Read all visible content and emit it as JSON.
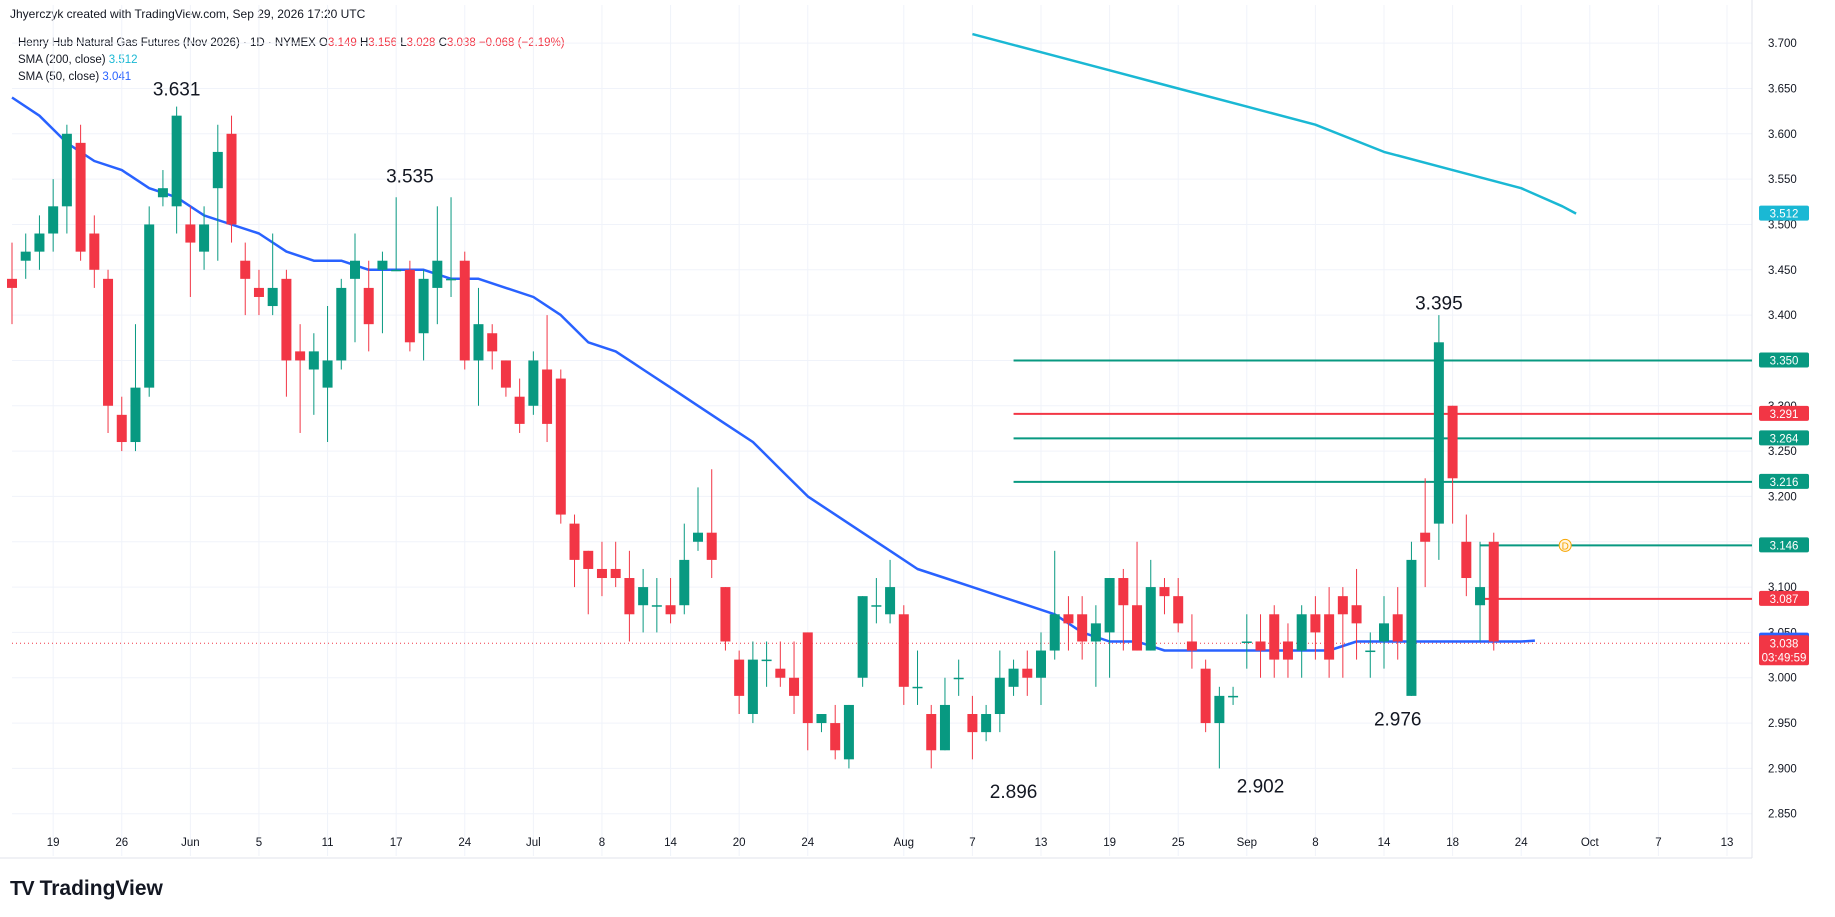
{
  "header": {
    "attribution": "Jhyerczyk created with TradingView.com, Sep 29, 2026 17:20 UTC"
  },
  "legend": {
    "symbol": "Henry Hub Natural Gas Futures (Nov 2026) · 1D · NYMEX",
    "o_label": "O",
    "o": "3.149",
    "h_label": "H",
    "h": "3.156",
    "l_label": "L",
    "l": "3.028",
    "c_label": "C",
    "c": "3.038",
    "change": "−0.068 (−2.19%)",
    "sma200_label": "SMA (200, close)",
    "sma200_value": "3.512",
    "sma50_label": "SMA (50, close)",
    "sma50_value": "3.041"
  },
  "brand": {
    "logo": "TV",
    "name": "TradingView"
  },
  "colors": {
    "up": "#089981",
    "down": "#f23645",
    "sma200": "#1ab8d4",
    "sma50": "#2962ff",
    "level_green": "#089981",
    "level_red": "#f23645"
  },
  "chart_data": {
    "type": "candlestick",
    "interval": "1D",
    "ylim": [
      2.81,
      3.72
    ],
    "y_ticks": [
      "3.700",
      "3.650",
      "3.600",
      "3.550",
      "3.500",
      "3.450",
      "3.400",
      "3.350",
      "3.300",
      "3.250",
      "3.200",
      "3.150",
      "3.100",
      "3.050",
      "3.000",
      "2.950",
      "2.900",
      "2.850"
    ],
    "x_ticks": [
      {
        "i": 3,
        "label": "19"
      },
      {
        "i": 8,
        "label": "26"
      },
      {
        "i": 13,
        "label": "Jun"
      },
      {
        "i": 18,
        "label": "5"
      },
      {
        "i": 23,
        "label": "11"
      },
      {
        "i": 28,
        "label": "17"
      },
      {
        "i": 33,
        "label": "24"
      },
      {
        "i": 38,
        "label": "Jul"
      },
      {
        "i": 43,
        "label": "8"
      },
      {
        "i": 48,
        "label": "14"
      },
      {
        "i": 53,
        "label": "20"
      },
      {
        "i": 58,
        "label": "24"
      },
      {
        "i": 65,
        "label": "Aug"
      },
      {
        "i": 70,
        "label": "7"
      },
      {
        "i": 75,
        "label": "13"
      },
      {
        "i": 80,
        "label": "19"
      },
      {
        "i": 85,
        "label": "25"
      },
      {
        "i": 90,
        "label": "Sep"
      },
      {
        "i": 95,
        "label": "8"
      },
      {
        "i": 100,
        "label": "14"
      },
      {
        "i": 105,
        "label": "18"
      },
      {
        "i": 110,
        "label": "24"
      },
      {
        "i": 115,
        "label": "Oct"
      },
      {
        "i": 120,
        "label": "7"
      },
      {
        "i": 125,
        "label": "13"
      }
    ],
    "candles": [
      [
        3.44,
        3.48,
        3.39,
        3.43
      ],
      [
        3.46,
        3.49,
        3.44,
        3.47
      ],
      [
        3.47,
        3.51,
        3.45,
        3.49
      ],
      [
        3.49,
        3.55,
        3.47,
        3.52
      ],
      [
        3.52,
        3.61,
        3.49,
        3.6
      ],
      [
        3.59,
        3.61,
        3.46,
        3.47
      ],
      [
        3.49,
        3.51,
        3.43,
        3.45
      ],
      [
        3.44,
        3.45,
        3.27,
        3.3
      ],
      [
        3.29,
        3.31,
        3.25,
        3.26
      ],
      [
        3.26,
        3.39,
        3.25,
        3.32
      ],
      [
        3.32,
        3.52,
        3.31,
        3.5
      ],
      [
        3.53,
        3.56,
        3.52,
        3.54
      ],
      [
        3.52,
        3.63,
        3.49,
        3.62
      ],
      [
        3.5,
        3.52,
        3.42,
        3.48
      ],
      [
        3.47,
        3.52,
        3.45,
        3.5
      ],
      [
        3.54,
        3.61,
        3.46,
        3.58
      ],
      [
        3.6,
        3.62,
        3.48,
        3.5
      ],
      [
        3.46,
        3.48,
        3.4,
        3.44
      ],
      [
        3.43,
        3.45,
        3.4,
        3.42
      ],
      [
        3.41,
        3.49,
        3.4,
        3.43
      ],
      [
        3.44,
        3.45,
        3.31,
        3.35
      ],
      [
        3.36,
        3.39,
        3.27,
        3.35
      ],
      [
        3.34,
        3.38,
        3.29,
        3.36
      ],
      [
        3.32,
        3.41,
        3.26,
        3.35
      ],
      [
        3.35,
        3.44,
        3.34,
        3.43
      ],
      [
        3.44,
        3.49,
        3.37,
        3.46
      ],
      [
        3.43,
        3.46,
        3.36,
        3.39
      ],
      [
        3.45,
        3.47,
        3.38,
        3.46
      ],
      [
        3.45,
        3.53,
        3.45,
        3.45
      ],
      [
        3.45,
        3.46,
        3.36,
        3.37
      ],
      [
        3.38,
        3.45,
        3.35,
        3.44
      ],
      [
        3.43,
        3.52,
        3.39,
        3.46
      ],
      [
        3.44,
        3.53,
        3.42,
        3.44
      ],
      [
        3.46,
        3.47,
        3.34,
        3.35
      ],
      [
        3.35,
        3.43,
        3.3,
        3.39
      ],
      [
        3.38,
        3.39,
        3.34,
        3.36
      ],
      [
        3.35,
        3.35,
        3.31,
        3.32
      ],
      [
        3.31,
        3.33,
        3.27,
        3.28
      ],
      [
        3.3,
        3.36,
        3.29,
        3.35
      ],
      [
        3.34,
        3.4,
        3.26,
        3.28
      ],
      [
        3.33,
        3.34,
        3.17,
        3.18
      ],
      [
        3.17,
        3.18,
        3.1,
        3.13
      ],
      [
        3.14,
        3.14,
        3.07,
        3.12
      ],
      [
        3.12,
        3.15,
        3.09,
        3.11
      ],
      [
        3.12,
        3.15,
        3.1,
        3.11
      ],
      [
        3.11,
        3.14,
        3.04,
        3.07
      ],
      [
        3.08,
        3.12,
        3.05,
        3.1
      ],
      [
        3.08,
        3.11,
        3.05,
        3.08
      ],
      [
        3.08,
        3.11,
        3.06,
        3.07
      ],
      [
        3.08,
        3.17,
        3.07,
        3.13
      ],
      [
        3.15,
        3.21,
        3.14,
        3.16
      ],
      [
        3.16,
        3.23,
        3.11,
        3.13
      ],
      [
        3.1,
        3.1,
        3.03,
        3.04
      ],
      [
        3.02,
        3.03,
        2.96,
        2.98
      ],
      [
        2.96,
        3.04,
        2.95,
        3.02
      ],
      [
        3.02,
        3.04,
        2.99,
        3.02
      ],
      [
        3.01,
        3.04,
        2.99,
        3.0
      ],
      [
        3.0,
        3.04,
        2.96,
        2.98
      ],
      [
        3.05,
        3.05,
        2.92,
        2.95
      ],
      [
        2.95,
        2.96,
        2.94,
        2.96
      ],
      [
        2.95,
        2.97,
        2.91,
        2.92
      ],
      [
        2.91,
        2.97,
        2.9,
        2.97
      ],
      [
        3.0,
        3.09,
        2.99,
        3.09
      ],
      [
        3.08,
        3.11,
        3.06,
        3.08
      ],
      [
        3.07,
        3.13,
        3.06,
        3.1
      ],
      [
        3.07,
        3.08,
        2.97,
        2.99
      ],
      [
        2.99,
        3.03,
        2.97,
        2.99
      ],
      [
        2.96,
        2.97,
        2.9,
        2.92
      ],
      [
        2.92,
        3.0,
        2.92,
        2.97
      ],
      [
        3.0,
        3.02,
        2.98,
        3.0
      ],
      [
        2.96,
        2.98,
        2.91,
        2.94
      ],
      [
        2.94,
        2.97,
        2.93,
        2.96
      ],
      [
        2.96,
        3.03,
        2.94,
        3.0
      ],
      [
        2.99,
        3.02,
        2.98,
        3.01
      ],
      [
        3.01,
        3.03,
        2.98,
        3.0
      ],
      [
        3.0,
        3.05,
        2.97,
        3.03
      ],
      [
        3.03,
        3.14,
        3.02,
        3.07
      ],
      [
        3.07,
        3.09,
        3.03,
        3.06
      ],
      [
        3.07,
        3.09,
        3.02,
        3.04
      ],
      [
        3.04,
        3.08,
        2.99,
        3.06
      ],
      [
        3.05,
        3.11,
        3.0,
        3.11
      ],
      [
        3.11,
        3.12,
        3.03,
        3.08
      ],
      [
        3.08,
        3.15,
        3.03,
        3.03
      ],
      [
        3.03,
        3.13,
        3.03,
        3.1
      ],
      [
        3.1,
        3.11,
        3.07,
        3.09
      ],
      [
        3.09,
        3.11,
        3.05,
        3.06
      ],
      [
        3.04,
        3.07,
        3.01,
        3.03
      ],
      [
        3.01,
        3.02,
        2.94,
        2.95
      ],
      [
        2.95,
        2.99,
        2.9,
        2.98
      ],
      [
        2.98,
        2.99,
        2.97,
        2.98
      ],
      [
        3.04,
        3.07,
        3.01,
        3.04
      ],
      [
        3.04,
        3.07,
        3.0,
        3.03
      ],
      [
        3.07,
        3.08,
        3.0,
        3.02
      ],
      [
        3.04,
        3.06,
        3.0,
        3.02
      ],
      [
        3.03,
        3.08,
        3.0,
        3.07
      ],
      [
        3.07,
        3.09,
        3.02,
        3.05
      ],
      [
        3.07,
        3.1,
        3.0,
        3.02
      ],
      [
        3.09,
        3.1,
        3.0,
        3.07
      ],
      [
        3.08,
        3.12,
        3.02,
        3.06
      ],
      [
        3.03,
        3.05,
        3.0,
        3.03
      ],
      [
        3.04,
        3.09,
        3.01,
        3.06
      ],
      [
        3.07,
        3.1,
        3.02,
        3.04
      ],
      [
        2.98,
        3.15,
        2.98,
        3.13
      ],
      [
        3.16,
        3.22,
        3.1,
        3.15
      ],
      [
        3.17,
        3.4,
        3.13,
        3.37
      ],
      [
        3.3,
        3.3,
        3.17,
        3.22
      ],
      [
        3.15,
        3.18,
        3.09,
        3.11
      ],
      [
        3.08,
        3.15,
        3.04,
        3.1
      ],
      [
        3.15,
        3.16,
        3.03,
        3.04
      ]
    ],
    "sma50": [
      [
        0,
        3.64
      ],
      [
        2,
        3.62
      ],
      [
        4,
        3.59
      ],
      [
        6,
        3.57
      ],
      [
        8,
        3.56
      ],
      [
        10,
        3.54
      ],
      [
        12,
        3.53
      ],
      [
        14,
        3.51
      ],
      [
        16,
        3.5
      ],
      [
        18,
        3.49
      ],
      [
        20,
        3.47
      ],
      [
        22,
        3.46
      ],
      [
        24,
        3.46
      ],
      [
        26,
        3.45
      ],
      [
        28,
        3.45
      ],
      [
        30,
        3.45
      ],
      [
        32,
        3.44
      ],
      [
        34,
        3.44
      ],
      [
        36,
        3.43
      ],
      [
        38,
        3.42
      ],
      [
        40,
        3.4
      ],
      [
        42,
        3.37
      ],
      [
        44,
        3.36
      ],
      [
        46,
        3.34
      ],
      [
        48,
        3.32
      ],
      [
        50,
        3.3
      ],
      [
        52,
        3.28
      ],
      [
        54,
        3.26
      ],
      [
        56,
        3.23
      ],
      [
        58,
        3.2
      ],
      [
        60,
        3.18
      ],
      [
        62,
        3.16
      ],
      [
        64,
        3.14
      ],
      [
        66,
        3.12
      ],
      [
        68,
        3.11
      ],
      [
        70,
        3.1
      ],
      [
        72,
        3.09
      ],
      [
        74,
        3.08
      ],
      [
        76,
        3.07
      ],
      [
        78,
        3.05
      ],
      [
        80,
        3.04
      ],
      [
        82,
        3.04
      ],
      [
        84,
        3.03
      ],
      [
        86,
        3.03
      ],
      [
        88,
        3.03
      ],
      [
        90,
        3.03
      ],
      [
        92,
        3.03
      ],
      [
        94,
        3.03
      ],
      [
        96,
        3.03
      ],
      [
        98,
        3.04
      ],
      [
        100,
        3.04
      ],
      [
        102,
        3.04
      ],
      [
        104,
        3.04
      ],
      [
        106,
        3.04
      ],
      [
        108,
        3.04
      ],
      [
        110,
        3.04
      ],
      [
        111,
        3.041
      ]
    ],
    "sma200": [
      [
        70,
        3.71
      ],
      [
        75,
        3.69
      ],
      [
        80,
        3.67
      ],
      [
        85,
        3.65
      ],
      [
        90,
        3.63
      ],
      [
        95,
        3.61
      ],
      [
        100,
        3.58
      ],
      [
        105,
        3.56
      ],
      [
        110,
        3.54
      ],
      [
        113,
        3.52
      ],
      [
        114,
        3.512
      ]
    ],
    "levels": [
      {
        "value": 3.35,
        "label": "3.350",
        "color": "#089981",
        "start": 73
      },
      {
        "value": 3.291,
        "label": "3.291",
        "color": "#f23645",
        "start": 73
      },
      {
        "value": 3.264,
        "label": "3.264",
        "color": "#089981",
        "start": 73
      },
      {
        "value": 3.216,
        "label": "3.216",
        "color": "#089981",
        "start": 73
      },
      {
        "value": 3.146,
        "label": "3.146",
        "color": "#089981",
        "start": 107
      },
      {
        "value": 3.087,
        "label": "3.087",
        "color": "#f23645",
        "start": 107
      }
    ],
    "price_tags": [
      {
        "value": 3.512,
        "label": "3.512",
        "color": "#1ab8d4"
      },
      {
        "value": 3.041,
        "label": "3.041",
        "color": "#2962ff"
      }
    ],
    "current": {
      "value": 3.038,
      "label": "3.038",
      "countdown": "03:49:59",
      "color": "#f23645"
    },
    "dividend_marker": {
      "i": 110,
      "value": 3.146,
      "label": "D"
    },
    "annotations": [
      {
        "i": 12,
        "value": 3.631,
        "text": "3.631",
        "pos": "above"
      },
      {
        "i": 29,
        "value": 3.535,
        "text": "3.535",
        "pos": "above"
      },
      {
        "i": 73,
        "value": 2.896,
        "text": "2.896",
        "pos": "below"
      },
      {
        "i": 91,
        "value": 2.902,
        "text": "2.902",
        "pos": "below"
      },
      {
        "i": 101,
        "value": 2.976,
        "text": "2.976",
        "pos": "below"
      },
      {
        "i": 104,
        "value": 3.395,
        "text": "3.395",
        "pos": "above"
      }
    ]
  }
}
